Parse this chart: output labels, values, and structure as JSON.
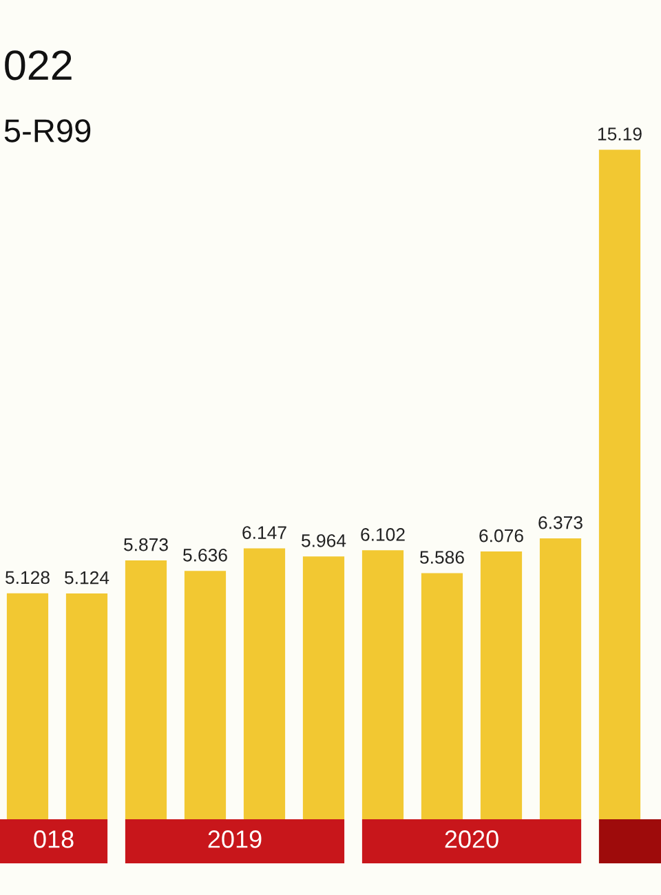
{
  "chart_data": {
    "type": "bar",
    "title": "022",
    "subtitle": "5-R99",
    "categories": [
      null,
      null,
      null,
      null,
      null,
      null,
      null,
      null,
      null,
      null,
      null
    ],
    "values": [
      5.128,
      5.124,
      5.873,
      5.636,
      6.147,
      5.964,
      6.102,
      5.586,
      6.076,
      6.373,
      15.19
    ],
    "color": "#f2c832",
    "data_labels": true,
    "grid": false,
    "annotations": [
      "018",
      "2019",
      "2020"
    ]
  }
}
